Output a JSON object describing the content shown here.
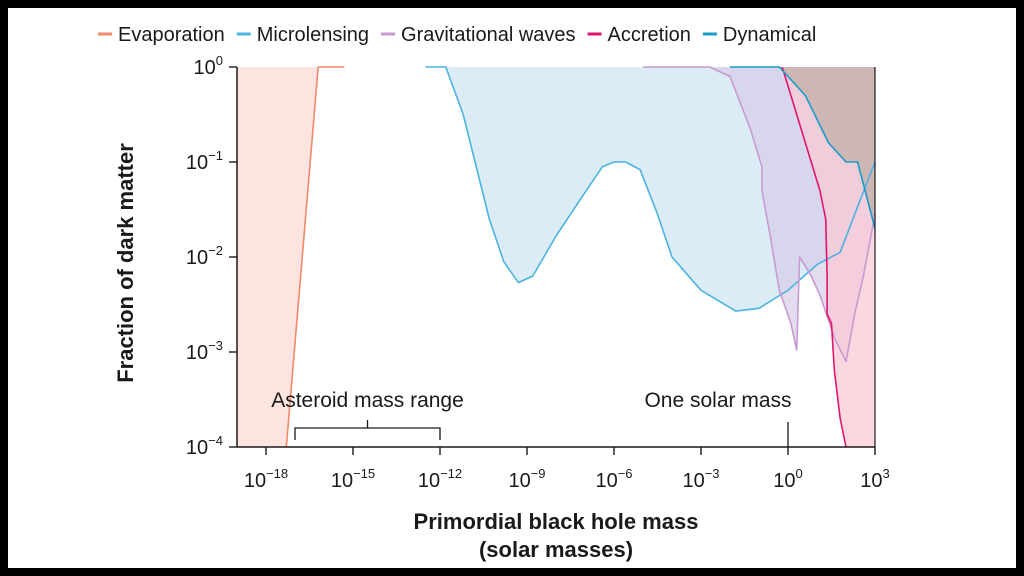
{
  "chart_data": {
    "type": "area",
    "title": "",
    "xlabel_line1": "Primordial black hole mass",
    "xlabel_line2": "(solar masses)",
    "ylabel": "Fraction of dark matter",
    "xscale": "log10",
    "yscale": "log10",
    "xlim_exponent": [
      -19,
      3
    ],
    "ylim_exponent": [
      -4,
      0
    ],
    "x_ticks": [
      {
        "base": "10",
        "exp": "−18",
        "exponent": -18
      },
      {
        "base": "10",
        "exp": "−15",
        "exponent": -15
      },
      {
        "base": "10",
        "exp": "−12",
        "exponent": -12
      },
      {
        "base": "10",
        "exp": "−9",
        "exponent": -9
      },
      {
        "base": "10",
        "exp": "−6",
        "exponent": -6
      },
      {
        "base": "10",
        "exp": "−3",
        "exponent": -3
      },
      {
        "base": "10",
        "exp": "0",
        "exponent": 0
      },
      {
        "base": "10",
        "exp": "3",
        "exponent": 3
      }
    ],
    "y_ticks": [
      {
        "base": "10",
        "exp": "0",
        "exponent": 0
      },
      {
        "base": "10",
        "exp": "−1",
        "exponent": -1
      },
      {
        "base": "10",
        "exp": "−2",
        "exponent": -2
      },
      {
        "base": "10",
        "exp": "−3",
        "exponent": -3
      },
      {
        "base": "10",
        "exp": "−4",
        "exponent": -4
      }
    ],
    "legend": [
      {
        "name": "Evaporation",
        "color": "#f08a6a"
      },
      {
        "name": "Microlensing",
        "color": "#4ab3e0"
      },
      {
        "name": "Gravitational waves",
        "color": "#c89ad0"
      },
      {
        "name": "Accretion",
        "color": "#e0156e"
      },
      {
        "name": "Dynamical",
        "color": "#1a9bc8"
      }
    ],
    "series": [
      {
        "name": "Evaporation",
        "color": "#f08a6a",
        "fill": "#fde3de",
        "fill_opacity": 0.95,
        "points": [
          [
            -17.3,
            -4
          ],
          [
            -16.2,
            0
          ],
          [
            -15.3,
            0
          ]
        ],
        "fill_polygon": [
          [
            -19,
            -4
          ],
          [
            -17.3,
            -4
          ],
          [
            -16.2,
            0
          ],
          [
            -19,
            0
          ]
        ]
      },
      {
        "name": "Microlensing",
        "color": "#4ab3e0",
        "fill": "#d5e9f5",
        "fill_opacity": 0.85,
        "points": [
          [
            -12.5,
            0
          ],
          [
            -11.8,
            0
          ],
          [
            -11.2,
            -0.5
          ],
          [
            -10.3,
            -1.6
          ],
          [
            -9.8,
            -2.05
          ],
          [
            -9.3,
            -2.27
          ],
          [
            -8.8,
            -2.2
          ],
          [
            -8.0,
            -1.78
          ],
          [
            -7.0,
            -1.32
          ],
          [
            -6.4,
            -1.05
          ],
          [
            -6.0,
            -1.0
          ],
          [
            -5.6,
            -1.0
          ],
          [
            -5.1,
            -1.08
          ],
          [
            -4.5,
            -1.55
          ],
          [
            -4.0,
            -2.0
          ],
          [
            -3.0,
            -2.35
          ],
          [
            -1.8,
            -2.57
          ],
          [
            -1.0,
            -2.54
          ],
          [
            0.0,
            -2.35
          ],
          [
            1.0,
            -2.08
          ],
          [
            1.8,
            -1.95
          ],
          [
            2.3,
            -1.55
          ],
          [
            3.0,
            -1.0
          ]
        ],
        "fill_polygon": [
          [
            -12.5,
            0
          ],
          [
            -11.8,
            0
          ],
          [
            -11.2,
            -0.5
          ],
          [
            -10.3,
            -1.6
          ],
          [
            -9.8,
            -2.05
          ],
          [
            -9.3,
            -2.27
          ],
          [
            -8.8,
            -2.2
          ],
          [
            -8.0,
            -1.78
          ],
          [
            -7.0,
            -1.32
          ],
          [
            -6.4,
            -1.05
          ],
          [
            -6.0,
            -1.0
          ],
          [
            -5.6,
            -1.0
          ],
          [
            -5.1,
            -1.08
          ],
          [
            -4.5,
            -1.55
          ],
          [
            -4.0,
            -2.0
          ],
          [
            -3.0,
            -2.35
          ],
          [
            -1.8,
            -2.57
          ],
          [
            -1.0,
            -2.54
          ],
          [
            0.0,
            -2.35
          ],
          [
            1.0,
            -2.08
          ],
          [
            1.8,
            -1.95
          ],
          [
            2.3,
            -1.55
          ],
          [
            3.0,
            -1.0
          ],
          [
            3.0,
            0
          ]
        ]
      },
      {
        "name": "Gravitational waves",
        "color": "#c89ad0",
        "fill": "#d7cde8",
        "fill_opacity": 0.7,
        "points": [
          [
            -5.0,
            0
          ],
          [
            -2.7,
            0
          ],
          [
            -2.0,
            -0.1
          ],
          [
            -1.3,
            -0.65
          ],
          [
            -0.9,
            -1.05
          ],
          [
            -0.9,
            -1.3
          ],
          [
            -0.6,
            -1.8
          ],
          [
            -0.3,
            -2.35
          ],
          [
            0.1,
            -2.7
          ],
          [
            0.3,
            -2.98
          ],
          [
            0.4,
            -2.0
          ],
          [
            0.8,
            -2.2
          ],
          [
            1.1,
            -2.4
          ],
          [
            1.6,
            -2.85
          ],
          [
            2.0,
            -3.1
          ],
          [
            2.3,
            -2.6
          ],
          [
            2.6,
            -2.2
          ],
          [
            3.0,
            -1.55
          ]
        ],
        "fill_polygon": [
          [
            -2.7,
            0
          ],
          [
            -2.0,
            -0.1
          ],
          [
            -1.3,
            -0.65
          ],
          [
            -0.9,
            -1.05
          ],
          [
            -0.9,
            -1.3
          ],
          [
            -0.6,
            -1.8
          ],
          [
            -0.3,
            -2.35
          ],
          [
            0.1,
            -2.7
          ],
          [
            0.3,
            -2.98
          ],
          [
            0.4,
            -2.0
          ],
          [
            0.8,
            -2.2
          ],
          [
            1.1,
            -2.4
          ],
          [
            1.6,
            -2.85
          ],
          [
            2.0,
            -3.1
          ],
          [
            2.3,
            -2.6
          ],
          [
            2.6,
            -2.2
          ],
          [
            3.0,
            -1.55
          ],
          [
            3.0,
            0
          ]
        ]
      },
      {
        "name": "Accretion",
        "color": "#e0156e",
        "fill": "#f9c9d6",
        "fill_opacity": 0.75,
        "points": [
          [
            -0.2,
            0
          ],
          [
            0.5,
            -0.7
          ],
          [
            1.1,
            -1.3
          ],
          [
            1.3,
            -1.6
          ],
          [
            1.35,
            -2.2
          ],
          [
            1.35,
            -2.6
          ],
          [
            1.5,
            -2.7
          ],
          [
            1.6,
            -3.2
          ],
          [
            1.8,
            -3.7
          ],
          [
            2.0,
            -4
          ]
        ],
        "fill_polygon": [
          [
            -0.2,
            0
          ],
          [
            0.5,
            -0.7
          ],
          [
            1.1,
            -1.3
          ],
          [
            1.3,
            -1.6
          ],
          [
            1.35,
            -2.2
          ],
          [
            1.35,
            -2.6
          ],
          [
            1.5,
            -2.7
          ],
          [
            1.6,
            -3.2
          ],
          [
            1.8,
            -3.7
          ],
          [
            2.0,
            -4
          ],
          [
            3.0,
            -4
          ],
          [
            3.0,
            0
          ]
        ]
      },
      {
        "name": "Dynamical",
        "color": "#1a9bc8",
        "fill": "#b9aaa0",
        "fill_opacity": 0.65,
        "points": [
          [
            -2.0,
            0
          ],
          [
            -0.3,
            0
          ],
          [
            0.6,
            -0.3
          ],
          [
            1.4,
            -0.8
          ],
          [
            2.0,
            -1.0
          ],
          [
            2.4,
            -1.0
          ],
          [
            3.0,
            -1.7
          ]
        ],
        "fill_polygon": [
          [
            -0.3,
            0
          ],
          [
            0.6,
            -0.3
          ],
          [
            1.4,
            -0.8
          ],
          [
            2.0,
            -1.0
          ],
          [
            2.4,
            -1.0
          ],
          [
            3.0,
            -1.7
          ],
          [
            3.0,
            0
          ]
        ]
      }
    ],
    "annotations": [
      {
        "id": "asteroid",
        "text": "Asteroid mass range",
        "x_from": -17.0,
        "x_to": -12.0,
        "y": -3.8
      },
      {
        "id": "solar",
        "text": "One solar mass",
        "x": 0,
        "y": -3.8
      }
    ]
  }
}
